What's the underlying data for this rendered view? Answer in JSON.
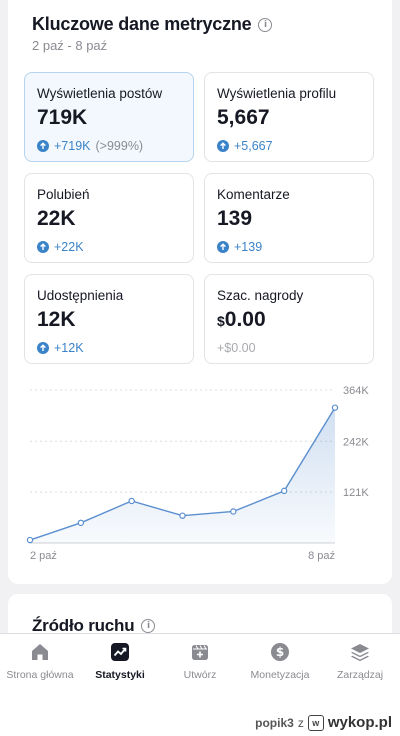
{
  "header": {
    "title": "Kluczowe dane metryczne",
    "date_range": "2 paź - 8 paź"
  },
  "metrics": [
    {
      "label": "Wyświetlenia postów",
      "value": "719K",
      "delta": "+719K",
      "delta_extra": "(>999%)",
      "trend": "up",
      "selected": true
    },
    {
      "label": "Wyświetlenia profilu",
      "value": "5,667",
      "delta": "+5,667",
      "trend": "up",
      "selected": false
    },
    {
      "label": "Polubień",
      "value": "22K",
      "delta": "+22K",
      "trend": "up",
      "selected": false
    },
    {
      "label": "Komentarze",
      "value": "139",
      "delta": "+139",
      "trend": "up",
      "selected": false
    },
    {
      "label": "Udostępnienia",
      "value": "12K",
      "delta": "+12K",
      "trend": "up",
      "selected": false
    },
    {
      "label": "Szac. nagrody",
      "currency": "$",
      "value": "0.00",
      "delta": "+$0.00",
      "trend": "none",
      "selected": false
    }
  ],
  "chart_data": {
    "type": "area",
    "x": [
      "2 paź",
      "3 paź",
      "4 paź",
      "5 paź",
      "6 paź",
      "7 paź",
      "8 paź"
    ],
    "x_tick_labels": [
      "2 paź",
      "8 paź"
    ],
    "y_tick_labels": [
      "364K",
      "242K",
      "121K"
    ],
    "ylim": [
      0,
      364
    ],
    "series": [
      {
        "values": [
          7,
          48,
          100,
          65,
          75,
          124,
          322
        ]
      }
    ],
    "color": "#5b8fcf",
    "grid": true
  },
  "traffic": {
    "title": "Źródło ruchu"
  },
  "tabbar": {
    "items": [
      {
        "label": "Strona główna",
        "icon": "home-icon",
        "active": false
      },
      {
        "label": "Statystyki",
        "icon": "stats-icon",
        "active": true
      },
      {
        "label": "Utwórz",
        "icon": "create-icon",
        "active": false
      },
      {
        "label": "Monetyzacja",
        "icon": "dollar-icon",
        "active": false
      },
      {
        "label": "Zarządzaj",
        "icon": "layers-icon",
        "active": false
      }
    ]
  },
  "watermark": {
    "user": "popik3",
    "sep": "z",
    "site": "wykop.pl"
  }
}
